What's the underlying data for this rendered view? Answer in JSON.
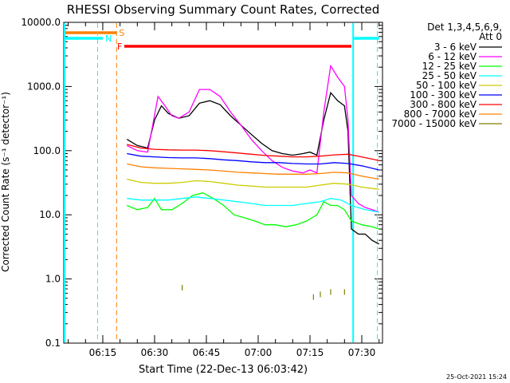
{
  "chart_data": {
    "type": "line",
    "title": "RHESSI Observing Summary Count Rates, Corrected",
    "xlabel": "Start Time (22-Dec-13 06:03:42)",
    "ylabel": "Corrected Count Rate (s⁻¹ detector⁻¹)",
    "yscale": "log",
    "ylim": [
      0.1,
      10000
    ],
    "y_ticks": [
      {
        "value": 0.1,
        "label": "0.1"
      },
      {
        "value": 1,
        "label": "1.0"
      },
      {
        "value": 10,
        "label": "10.0"
      },
      {
        "value": 100,
        "label": "100.0"
      },
      {
        "value": 1000,
        "label": "1000.0"
      },
      {
        "value": 10000,
        "label": "10000.0"
      }
    ],
    "xlim": [
      "06:03:42",
      "07:36:00"
    ],
    "x_ticks": [
      {
        "value": "06:15",
        "label": "06:15"
      },
      {
        "value": "06:30",
        "label": "06:30"
      },
      {
        "value": "06:45",
        "label": "06:45"
      },
      {
        "value": "07:00",
        "label": "07:00"
      },
      {
        "value": "07:15",
        "label": "07:15"
      },
      {
        "value": "07:30",
        "label": "07:30"
      }
    ],
    "legend": {
      "placement": "right",
      "header": [
        "Det 1,3,4,5,6,9,",
        "Att 0"
      ]
    },
    "series": [
      {
        "name": "3 - 6 keV",
        "color": "#000000",
        "points": [
          [
            "06:22",
            150
          ],
          [
            "06:25",
            120
          ],
          [
            "06:28",
            110
          ],
          [
            "06:30",
            300
          ],
          [
            "06:32",
            500
          ],
          [
            "06:34",
            380
          ],
          [
            "06:37",
            320
          ],
          [
            "06:40",
            350
          ],
          [
            "06:43",
            550
          ],
          [
            "06:46",
            600
          ],
          [
            "06:49",
            520
          ],
          [
            "06:52",
            350
          ],
          [
            "06:55",
            250
          ],
          [
            "06:58",
            180
          ],
          [
            "07:01",
            130
          ],
          [
            "07:04",
            100
          ],
          [
            "07:07",
            90
          ],
          [
            "07:10",
            85
          ],
          [
            "07:13",
            90
          ],
          [
            "07:15",
            95
          ],
          [
            "07:17",
            85
          ],
          [
            "07:19",
            300
          ],
          [
            "07:21",
            800
          ],
          [
            "07:23",
            600
          ],
          [
            "07:25",
            500
          ],
          [
            "07:26",
            200
          ],
          [
            "07:27",
            6
          ],
          [
            "07:29",
            5
          ],
          [
            "07:31",
            5
          ],
          [
            "07:33",
            4
          ],
          [
            "07:35",
            3.5
          ]
        ]
      },
      {
        "name": "6 - 12 keV",
        "color": "#ff00ff",
        "points": [
          [
            "06:22",
            120
          ],
          [
            "06:25",
            100
          ],
          [
            "06:28",
            95
          ],
          [
            "06:31",
            700
          ],
          [
            "06:33",
            500
          ],
          [
            "06:35",
            350
          ],
          [
            "06:37",
            320
          ],
          [
            "06:40",
            400
          ],
          [
            "06:43",
            900
          ],
          [
            "06:46",
            900
          ],
          [
            "06:49",
            700
          ],
          [
            "06:52",
            400
          ],
          [
            "06:55",
            250
          ],
          [
            "06:58",
            150
          ],
          [
            "07:01",
            100
          ],
          [
            "07:04",
            70
          ],
          [
            "07:07",
            55
          ],
          [
            "07:10",
            48
          ],
          [
            "07:13",
            45
          ],
          [
            "07:15",
            50
          ],
          [
            "07:17",
            45
          ],
          [
            "07:19",
            400
          ],
          [
            "07:21",
            2100
          ],
          [
            "07:23",
            1400
          ],
          [
            "07:25",
            1000
          ],
          [
            "07:26",
            300
          ],
          [
            "07:27",
            20
          ],
          [
            "07:29",
            15
          ],
          [
            "07:31",
            13
          ],
          [
            "07:33",
            12
          ],
          [
            "07:35",
            11
          ]
        ]
      },
      {
        "name": "12 - 25 keV",
        "color": "#00ff00",
        "points": [
          [
            "06:22",
            14
          ],
          [
            "06:25",
            12
          ],
          [
            "06:28",
            13
          ],
          [
            "06:30",
            18
          ],
          [
            "06:32",
            12
          ],
          [
            "06:35",
            12
          ],
          [
            "06:38",
            15
          ],
          [
            "06:41",
            20
          ],
          [
            "06:44",
            22
          ],
          [
            "06:47",
            18
          ],
          [
            "06:50",
            14
          ],
          [
            "06:53",
            10
          ],
          [
            "06:56",
            9
          ],
          [
            "06:59",
            8
          ],
          [
            "07:02",
            7
          ],
          [
            "07:05",
            7
          ],
          [
            "07:08",
            6.5
          ],
          [
            "07:11",
            7
          ],
          [
            "07:14",
            8
          ],
          [
            "07:17",
            10
          ],
          [
            "07:19",
            16
          ],
          [
            "07:21",
            14
          ],
          [
            "07:23",
            14
          ],
          [
            "07:25",
            12
          ],
          [
            "07:27",
            8
          ],
          [
            "07:30",
            7
          ],
          [
            "07:33",
            6.5
          ],
          [
            "07:35",
            6
          ]
        ]
      },
      {
        "name": "25 - 50 keV",
        "color": "#00ffff",
        "points": [
          [
            "06:22",
            18
          ],
          [
            "06:26",
            17
          ],
          [
            "06:30",
            17
          ],
          [
            "06:34",
            17
          ],
          [
            "06:38",
            18
          ],
          [
            "06:42",
            19
          ],
          [
            "06:46",
            18
          ],
          [
            "06:50",
            17
          ],
          [
            "06:54",
            16
          ],
          [
            "06:58",
            15
          ],
          [
            "07:02",
            14
          ],
          [
            "07:06",
            14
          ],
          [
            "07:10",
            14
          ],
          [
            "07:14",
            15
          ],
          [
            "07:18",
            16
          ],
          [
            "07:21",
            18
          ],
          [
            "07:24",
            17
          ],
          [
            "07:27",
            14
          ],
          [
            "07:31",
            12
          ],
          [
            "07:35",
            11
          ]
        ]
      },
      {
        "name": "50 - 100 keV",
        "color": "#cccc00",
        "points": [
          [
            "06:22",
            36
          ],
          [
            "06:26",
            32
          ],
          [
            "06:30",
            31
          ],
          [
            "06:34",
            31
          ],
          [
            "06:38",
            32
          ],
          [
            "06:42",
            34
          ],
          [
            "06:46",
            33
          ],
          [
            "06:50",
            31
          ],
          [
            "06:54",
            29
          ],
          [
            "06:58",
            28
          ],
          [
            "07:02",
            27
          ],
          [
            "07:06",
            27
          ],
          [
            "07:10",
            27
          ],
          [
            "07:14",
            27
          ],
          [
            "07:18",
            29
          ],
          [
            "07:22",
            31
          ],
          [
            "07:26",
            30
          ],
          [
            "07:30",
            27
          ],
          [
            "07:35",
            25
          ]
        ]
      },
      {
        "name": "100 - 300 keV",
        "color": "#0000ff",
        "points": [
          [
            "06:22",
            90
          ],
          [
            "06:26",
            82
          ],
          [
            "06:30",
            80
          ],
          [
            "06:34",
            78
          ],
          [
            "06:38",
            77
          ],
          [
            "06:42",
            77
          ],
          [
            "06:46",
            75
          ],
          [
            "06:50",
            72
          ],
          [
            "06:54",
            70
          ],
          [
            "06:58",
            67
          ],
          [
            "07:02",
            65
          ],
          [
            "07:06",
            65
          ],
          [
            "07:10",
            63
          ],
          [
            "07:14",
            62
          ],
          [
            "07:18",
            62
          ],
          [
            "07:22",
            65
          ],
          [
            "07:26",
            63
          ],
          [
            "07:30",
            58
          ],
          [
            "07:35",
            50
          ]
        ]
      },
      {
        "name": "300 - 800 keV",
        "color": "#ff0000",
        "points": [
          [
            "06:22",
            125
          ],
          [
            "06:26",
            110
          ],
          [
            "06:30",
            105
          ],
          [
            "06:34",
            103
          ],
          [
            "06:38",
            102
          ],
          [
            "06:42",
            102
          ],
          [
            "06:46",
            100
          ],
          [
            "06:50",
            96
          ],
          [
            "06:54",
            92
          ],
          [
            "06:58",
            88
          ],
          [
            "07:02",
            84
          ],
          [
            "07:06",
            82
          ],
          [
            "07:10",
            80
          ],
          [
            "07:14",
            80
          ],
          [
            "07:18",
            82
          ],
          [
            "07:22",
            86
          ],
          [
            "07:26",
            88
          ],
          [
            "07:30",
            80
          ],
          [
            "07:35",
            70
          ]
        ]
      },
      {
        "name": "800 - 7000 keV",
        "color": "#ff8000",
        "points": [
          [
            "06:22",
            62
          ],
          [
            "06:26",
            56
          ],
          [
            "06:30",
            54
          ],
          [
            "06:34",
            53
          ],
          [
            "06:38",
            52
          ],
          [
            "06:42",
            51
          ],
          [
            "06:46",
            50
          ],
          [
            "06:50",
            48
          ],
          [
            "06:54",
            46
          ],
          [
            "06:58",
            45
          ],
          [
            "07:02",
            44
          ],
          [
            "07:06",
            43
          ],
          [
            "07:10",
            43
          ],
          [
            "07:14",
            43
          ],
          [
            "07:18",
            44
          ],
          [
            "07:22",
            46
          ],
          [
            "07:26",
            45
          ],
          [
            "07:30",
            40
          ],
          [
            "07:35",
            36
          ]
        ]
      },
      {
        "name": "7000 - 15000 keV",
        "color": "#808000",
        "points": [
          [
            "06:38",
            0.7
          ],
          [
            "07:16",
            0.5
          ],
          [
            "07:18",
            0.55
          ],
          [
            "07:21",
            0.6
          ],
          [
            "07:25",
            0.6
          ]
        ]
      }
    ],
    "annotations": [
      {
        "label": "S",
        "color": "#ff8000",
        "start": "06:03:42",
        "end": "06:19:00"
      },
      {
        "label": "N",
        "color": "#00ffff",
        "start": "06:03:42",
        "end": "06:15:00"
      },
      {
        "label": "F",
        "color": "#ff0000",
        "start": "06:21:00",
        "end": "07:27:00"
      },
      {
        "label": "",
        "color": "#00ffff",
        "start": "07:27:30",
        "end": "07:35:00"
      }
    ],
    "vertical_lines": [
      {
        "time": "06:03:42",
        "color": "#00ffff",
        "style": "solid"
      },
      {
        "time": "06:13:30",
        "color": "#00ffff",
        "style": "dashed"
      },
      {
        "time": "06:19:00",
        "color": "#ff8000",
        "style": "dashed"
      },
      {
        "time": "07:27:30",
        "color": "#00ffff",
        "style": "solid"
      },
      {
        "time": "07:34:30",
        "color": "#00ffff",
        "style": "dashed"
      }
    ],
    "timestamp": "25-Oct-2021 15:24"
  }
}
